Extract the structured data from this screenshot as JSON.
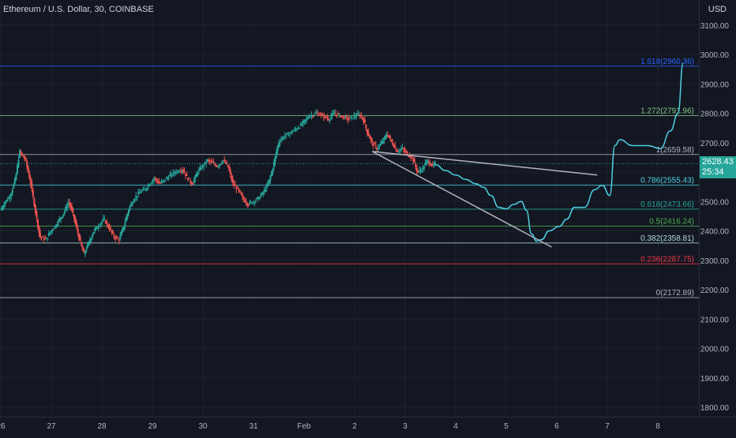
{
  "header": {
    "title": "Ethereum / U.S. Dollar, 30, COINBASE",
    "currency": "USD"
  },
  "price_tag": {
    "price": "2628.43",
    "countdown": "25:34",
    "color": "#26a69a"
  },
  "chart_data": {
    "type": "candlestick",
    "symbol": "Ethereum / U.S. Dollar",
    "interval": "30",
    "exchange": "COINBASE",
    "ylim": [
      1770,
      3140
    ],
    "y_ticks": [
      3100,
      3000,
      2900,
      2800,
      2700,
      2600,
      2500,
      2400,
      2300,
      2200,
      2100,
      2000,
      1900,
      1800
    ],
    "y_tick_labels": [
      "3100.00",
      "3000.00",
      "2900.00",
      "2800.00",
      "2700.00",
      "2600.00",
      "2500.00",
      "2400.00",
      "2300.00",
      "2200.00",
      "2100.00",
      "2000.00",
      "1900.00",
      "1800.00"
    ],
    "x_ticks": [
      "26",
      "27",
      "28",
      "29",
      "30",
      "31",
      "Feb",
      "2",
      "3",
      "4",
      "5",
      "6",
      "7",
      "8"
    ],
    "x_tick_days": [
      0,
      1,
      2,
      3,
      4,
      5,
      6,
      7,
      8,
      9,
      10,
      11,
      12,
      13
    ],
    "x_range_days": [
      0,
      14.45
    ],
    "current_price": 2628.43,
    "price_path": [
      [
        0,
        2470
      ],
      [
        0.1,
        2500
      ],
      [
        0.2,
        2520
      ],
      [
        0.3,
        2580
      ],
      [
        0.38,
        2670
      ],
      [
        0.5,
        2640
      ],
      [
        0.6,
        2560
      ],
      [
        0.7,
        2460
      ],
      [
        0.78,
        2380
      ],
      [
        0.9,
        2370
      ],
      [
        1.0,
        2400
      ],
      [
        1.1,
        2420
      ],
      [
        1.25,
        2460
      ],
      [
        1.35,
        2500
      ],
      [
        1.45,
        2450
      ],
      [
        1.55,
        2380
      ],
      [
        1.65,
        2320
      ],
      [
        1.75,
        2360
      ],
      [
        1.85,
        2400
      ],
      [
        1.95,
        2420
      ],
      [
        2.05,
        2440
      ],
      [
        2.15,
        2410
      ],
      [
        2.25,
        2380
      ],
      [
        2.35,
        2370
      ],
      [
        2.45,
        2420
      ],
      [
        2.55,
        2480
      ],
      [
        2.65,
        2510
      ],
      [
        2.75,
        2530
      ],
      [
        2.85,
        2540
      ],
      [
        2.95,
        2560
      ],
      [
        3.05,
        2580
      ],
      [
        3.15,
        2560
      ],
      [
        3.3,
        2580
      ],
      [
        3.45,
        2600
      ],
      [
        3.6,
        2610
      ],
      [
        3.7,
        2580
      ],
      [
        3.8,
        2560
      ],
      [
        3.9,
        2600
      ],
      [
        4.0,
        2620
      ],
      [
        4.1,
        2640
      ],
      [
        4.2,
        2630
      ],
      [
        4.3,
        2620
      ],
      [
        4.4,
        2640
      ],
      [
        4.5,
        2620
      ],
      [
        4.6,
        2560
      ],
      [
        4.7,
        2540
      ],
      [
        4.8,
        2510
      ],
      [
        4.9,
        2490
      ],
      [
        5.0,
        2500
      ],
      [
        5.1,
        2510
      ],
      [
        5.2,
        2530
      ],
      [
        5.3,
        2560
      ],
      [
        5.4,
        2620
      ],
      [
        5.5,
        2700
      ],
      [
        5.6,
        2720
      ],
      [
        5.7,
        2730
      ],
      [
        5.8,
        2740
      ],
      [
        5.95,
        2760
      ],
      [
        6.1,
        2790
      ],
      [
        6.25,
        2800
      ],
      [
        6.4,
        2790
      ],
      [
        6.5,
        2780
      ],
      [
        6.6,
        2800
      ],
      [
        6.75,
        2790
      ],
      [
        6.9,
        2780
      ],
      [
        7.0,
        2790
      ],
      [
        7.1,
        2795
      ],
      [
        7.18,
        2780
      ],
      [
        7.25,
        2740
      ],
      [
        7.35,
        2700
      ],
      [
        7.45,
        2680
      ],
      [
        7.55,
        2700
      ],
      [
        7.65,
        2730
      ],
      [
        7.75,
        2700
      ],
      [
        7.85,
        2670
      ],
      [
        7.95,
        2680
      ],
      [
        8.05,
        2660
      ],
      [
        8.15,
        2650
      ],
      [
        8.25,
        2600
      ],
      [
        8.35,
        2610
      ],
      [
        8.45,
        2640
      ],
      [
        8.55,
        2620
      ],
      [
        8.6,
        2628
      ]
    ],
    "fib_levels": [
      {
        "ratio": "1.618",
        "value": 2960.36,
        "label": "1.618(2960.36)",
        "color": "#2962ff"
      },
      {
        "ratio": "1.272",
        "value": 2791.96,
        "label": "1.272(2791.96)",
        "color": "#81c784"
      },
      {
        "ratio": "1",
        "value": 2659.58,
        "label": "1(2659.58)",
        "color": "#b2b5be"
      },
      {
        "ratio": "0.786",
        "value": 2555.43,
        "label": "0.786(2555.43)",
        "color": "#4dd0e1"
      },
      {
        "ratio": "0.618",
        "value": 2473.66,
        "label": "0.618(2473.66)",
        "color": "#26a69a"
      },
      {
        "ratio": "0.5",
        "value": 2416.24,
        "label": "0.5(2416.24)",
        "color": "#4caf50"
      },
      {
        "ratio": "0.382",
        "value": 2358.81,
        "label": "0.382(2358.81)",
        "color": "#b2dfdb"
      },
      {
        "ratio": "0.236",
        "value": 2287.75,
        "label": "0.236(2287.75)",
        "color": "#f23645"
      },
      {
        "ratio": "0",
        "value": 2172.89,
        "label": "0(2172.89)",
        "color": "#b2b5be"
      }
    ],
    "trendlines": [
      {
        "name": "upper-wedge-line",
        "x": [
          7.35,
          11.8
        ],
        "y": [
          2670,
          2590
        ],
        "color": "#b2b5be"
      },
      {
        "name": "lower-wedge-line",
        "x": [
          7.35,
          10.9
        ],
        "y": [
          2670,
          2345
        ],
        "color": "#b2b5be"
      }
    ],
    "projection_path": [
      [
        8.6,
        2625
      ],
      [
        8.8,
        2605
      ],
      [
        9.0,
        2590
      ],
      [
        9.2,
        2575
      ],
      [
        9.4,
        2560
      ],
      [
        9.55,
        2548
      ],
      [
        9.7,
        2520
      ],
      [
        9.85,
        2480
      ],
      [
        10.0,
        2475
      ],
      [
        10.15,
        2490
      ],
      [
        10.3,
        2500
      ],
      [
        10.4,
        2470
      ],
      [
        10.5,
        2390
      ],
      [
        10.6,
        2365
      ],
      [
        10.7,
        2370
      ],
      [
        10.85,
        2400
      ],
      [
        11.05,
        2415
      ],
      [
        11.2,
        2440
      ],
      [
        11.35,
        2480
      ],
      [
        11.55,
        2480
      ],
      [
        11.75,
        2540
      ],
      [
        11.9,
        2555
      ],
      [
        12.05,
        2520
      ],
      [
        12.15,
        2690
      ],
      [
        12.25,
        2710
      ],
      [
        12.5,
        2690
      ],
      [
        12.8,
        2690
      ],
      [
        13.05,
        2680
      ],
      [
        13.25,
        2740
      ],
      [
        13.4,
        2800
      ],
      [
        13.5,
        2970
      ]
    ],
    "projection_color": "#4dd0e1",
    "up_color": "#26a69a",
    "down_color": "#ef5350"
  }
}
